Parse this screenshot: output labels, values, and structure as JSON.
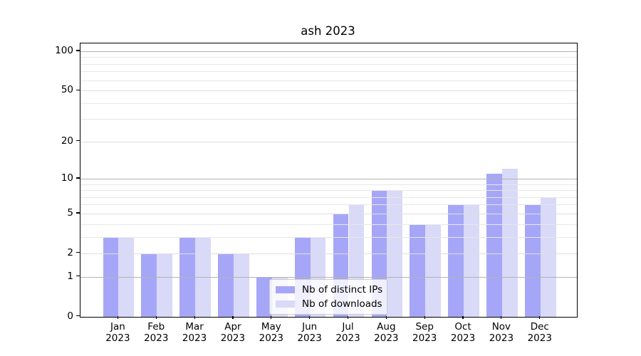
{
  "title": "ash 2023",
  "legend": {
    "items": [
      {
        "label": "Nb of distinct IPs",
        "color": "#a6a6f8"
      },
      {
        "label": "Nb of downloads",
        "color": "#d9d9f8"
      }
    ]
  },
  "y_axis": {
    "tick_labels": [
      "0",
      "1",
      "2",
      "5",
      "10",
      "20",
      "50",
      "100"
    ]
  },
  "chart_data": {
    "type": "bar",
    "title": "ash 2023",
    "categories": [
      "Jan 2023",
      "Feb 2023",
      "Mar 2023",
      "Apr 2023",
      "May 2023",
      "Jun 2023",
      "Jul 2023",
      "Aug 2023",
      "Sep 2023",
      "Oct 2023",
      "Nov 2023",
      "Dec 2023"
    ],
    "series": [
      {
        "name": "Nb of distinct IPs",
        "color": "#a6a6f8",
        "values": [
          3,
          2,
          3,
          2,
          1,
          3,
          5,
          8,
          4,
          6,
          11,
          6
        ]
      },
      {
        "name": "Nb of downloads",
        "color": "#d9d9f8",
        "values": [
          3,
          2,
          3,
          2,
          1,
          3,
          6,
          8,
          4,
          6,
          12,
          7
        ]
      }
    ],
    "xlabel": "",
    "ylabel": "",
    "yscale": "log1p",
    "ylim": [
      0,
      112
    ],
    "yticks": [
      0,
      1,
      2,
      5,
      10,
      20,
      50,
      100
    ],
    "major_gridlines": [
      1,
      10,
      100
    ],
    "mid_gridlines": [
      2,
      5,
      20,
      50
    ],
    "minor_gridlines": [
      3,
      4,
      6,
      7,
      8,
      9,
      30,
      40,
      60,
      70,
      80,
      90
    ],
    "grid": true,
    "legend_position": "lower-center-inside",
    "bar_grouping": "side-by-side pair per month"
  }
}
